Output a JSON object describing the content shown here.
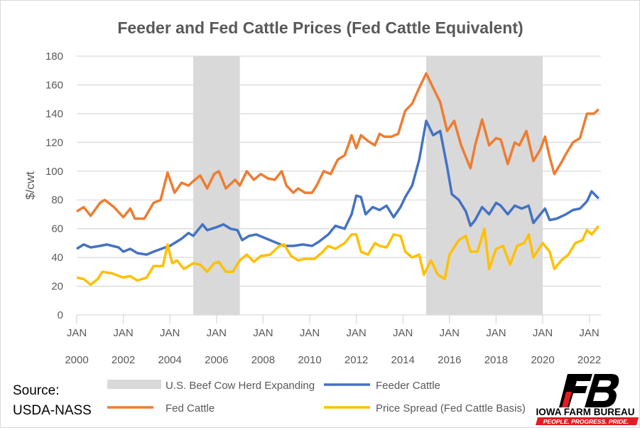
{
  "chart_data": {
    "type": "line",
    "title": "Feeder and Fed Cattle Prices (Fed Cattle Equivalent)",
    "xlabel": "",
    "ylabel": "$/cwt",
    "ylim": [
      0,
      180
    ],
    "yticks": [
      0,
      20,
      40,
      60,
      80,
      100,
      120,
      140,
      160,
      180
    ],
    "xlim": [
      2000,
      2022.5
    ],
    "xticks": [
      {
        "month": "JAN",
        "year": "2000",
        "x": 2000
      },
      {
        "month": "JAN",
        "year": "2002",
        "x": 2002
      },
      {
        "month": "JAN",
        "year": "2004",
        "x": 2004
      },
      {
        "month": "JAN",
        "year": "2006",
        "x": 2006
      },
      {
        "month": "JAN",
        "year": "2008",
        "x": 2008
      },
      {
        "month": "JAN",
        "year": "2010",
        "x": 2010
      },
      {
        "month": "JAN",
        "year": "2012",
        "x": 2012
      },
      {
        "month": "JAN",
        "year": "2014",
        "x": 2014
      },
      {
        "month": "JAN",
        "year": "2016",
        "x": 2016
      },
      {
        "month": "JAN",
        "year": "2018",
        "x": 2018
      },
      {
        "month": "JAN",
        "year": "2020",
        "x": 2020
      },
      {
        "month": "JAN",
        "year": "2022",
        "x": 2022
      }
    ],
    "grid": true,
    "legend_placement": "bottom",
    "shaded_regions": {
      "name": "U.S. Beef Cow Herd Expanding",
      "color": "#d9d9d9",
      "ranges": [
        [
          2005,
          2007
        ],
        [
          2015,
          2020
        ]
      ]
    },
    "series": [
      {
        "name": "Feeder Cattle",
        "color": "#4472c4",
        "x": [
          2000,
          2000.3,
          2000.6,
          2001,
          2001.3,
          2001.8,
          2002,
          2002.3,
          2002.6,
          2003,
          2003.3,
          2003.8,
          2004,
          2004.5,
          2004.8,
          2005,
          2005.4,
          2005.6,
          2006,
          2006.3,
          2006.6,
          2006.9,
          2007.1,
          2007.4,
          2007.7,
          2008,
          2008.3,
          2008.6,
          2008.9,
          2009.3,
          2009.7,
          2010.1,
          2010.4,
          2010.8,
          2011.1,
          2011.5,
          2011.8,
          2012,
          2012.2,
          2012.4,
          2012.7,
          2013,
          2013.3,
          2013.6,
          2013.9,
          2014.1,
          2014.4,
          2014.7,
          2015,
          2015.3,
          2015.6,
          2015.9,
          2016.1,
          2016.4,
          2016.7,
          2016.9,
          2017.1,
          2017.4,
          2017.7,
          2018,
          2018.2,
          2018.5,
          2018.8,
          2019.1,
          2019.4,
          2019.6,
          2019.9,
          2020.1,
          2020.3,
          2020.6,
          2021,
          2021.3,
          2021.6,
          2021.9,
          2022.1,
          2022.4
        ],
        "values": [
          46,
          49,
          47,
          48,
          49,
          47,
          44,
          46,
          43,
          42,
          44,
          47,
          48,
          53,
          57,
          55,
          63,
          59,
          61,
          63,
          60,
          59,
          52,
          55,
          56,
          54,
          52,
          50,
          48,
          48,
          49,
          48,
          51,
          56,
          62,
          60,
          70,
          83,
          82,
          70,
          75,
          73,
          76,
          68,
          75,
          82,
          90,
          108,
          135,
          125,
          128,
          103,
          84,
          80,
          72,
          62,
          66,
          75,
          70,
          78,
          76,
          70,
          76,
          74,
          76,
          64,
          70,
          74,
          66,
          67,
          70,
          73,
          74,
          79,
          86,
          81
        ]
      },
      {
        "name": "Fed Cattle",
        "color": "#ed7d31",
        "x": [
          2000,
          2000.3,
          2000.6,
          2001,
          2001.2,
          2001.6,
          2002,
          2002.3,
          2002.5,
          2002.9,
          2003.3,
          2003.6,
          2003.9,
          2004.2,
          2004.5,
          2004.8,
          2005,
          2005.3,
          2005.6,
          2005.9,
          2006.1,
          2006.4,
          2006.8,
          2007,
          2007.3,
          2007.6,
          2007.9,
          2008.2,
          2008.5,
          2008.8,
          2009,
          2009.3,
          2009.5,
          2009.8,
          2010.1,
          2010.3,
          2010.6,
          2010.9,
          2011.2,
          2011.5,
          2011.7,
          2011.8,
          2012,
          2012.2,
          2012.5,
          2012.8,
          2013,
          2013.2,
          2013.5,
          2013.8,
          2014.1,
          2014.4,
          2014.7,
          2015,
          2015.3,
          2015.6,
          2015.9,
          2016.2,
          2016.5,
          2016.9,
          2017.1,
          2017.4,
          2017.7,
          2018,
          2018.2,
          2018.5,
          2018.8,
          2019,
          2019.3,
          2019.6,
          2019.9,
          2020.1,
          2020.3,
          2020.5,
          2020.8,
          2021,
          2021.3,
          2021.6,
          2021.9,
          2022.2,
          2022.4
        ],
        "values": [
          72,
          75,
          69,
          78,
          80,
          75,
          68,
          74,
          67,
          67,
          78,
          80,
          99,
          85,
          92,
          90,
          93,
          97,
          88,
          98,
          100,
          88,
          94,
          90,
          100,
          94,
          98,
          95,
          94,
          100,
          90,
          85,
          88,
          85,
          85,
          90,
          100,
          98,
          108,
          111,
          120,
          125,
          116,
          125,
          121,
          118,
          126,
          124,
          124,
          126,
          142,
          147,
          158,
          168,
          158,
          148,
          128,
          135,
          118,
          102,
          118,
          136,
          118,
          123,
          122,
          105,
          120,
          118,
          128,
          107,
          115,
          124,
          110,
          98,
          106,
          112,
          120,
          123,
          140,
          140,
          143
        ]
      },
      {
        "name": "Price Spread (Fed Cattle Basis)",
        "color": "#ffc000",
        "x": [
          2000,
          2000.3,
          2000.6,
          2000.9,
          2001.1,
          2001.5,
          2002,
          2002.3,
          2002.6,
          2003,
          2003.3,
          2003.7,
          2003.9,
          2004.1,
          2004.3,
          2004.6,
          2005,
          2005.3,
          2005.6,
          2005.9,
          2006.1,
          2006.4,
          2006.7,
          2007,
          2007.3,
          2007.6,
          2007.9,
          2008.3,
          2008.7,
          2008.9,
          2009.2,
          2009.5,
          2009.8,
          2010.2,
          2010.5,
          2010.8,
          2011.1,
          2011.5,
          2011.8,
          2012,
          2012.2,
          2012.5,
          2012.8,
          2013,
          2013.3,
          2013.6,
          2013.9,
          2014.1,
          2014.4,
          2014.7,
          2014.9,
          2015.2,
          2015.5,
          2015.8,
          2016,
          2016.4,
          2016.7,
          2016.9,
          2017.2,
          2017.5,
          2017.7,
          2018,
          2018.3,
          2018.6,
          2018.9,
          2019.2,
          2019.4,
          2019.6,
          2020,
          2020.3,
          2020.5,
          2020.8,
          2021.1,
          2021.4,
          2021.7,
          2021.9,
          2022.1,
          2022.4
        ],
        "values": [
          26,
          25,
          21,
          25,
          30,
          29,
          26,
          27,
          24,
          26,
          34,
          34,
          49,
          36,
          38,
          32,
          36,
          35,
          30,
          36,
          37,
          30,
          30,
          38,
          42,
          37,
          41,
          42,
          48,
          49,
          41,
          38,
          39,
          39,
          43,
          48,
          46,
          50,
          56,
          56,
          44,
          42,
          50,
          48,
          47,
          56,
          55,
          44,
          40,
          42,
          28,
          38,
          28,
          25,
          42,
          52,
          55,
          44,
          44,
          60,
          32,
          46,
          48,
          35,
          48,
          50,
          56,
          40,
          50,
          44,
          32,
          38,
          42,
          50,
          52,
          59,
          56,
          62
        ]
      }
    ]
  },
  "source": {
    "line1": "Source:",
    "line2": "USDA-NASS"
  },
  "logo": {
    "name": "IOWA FARM BUREAU",
    "tagline": "PEOPLE. PROGRESS. PRIDE."
  }
}
